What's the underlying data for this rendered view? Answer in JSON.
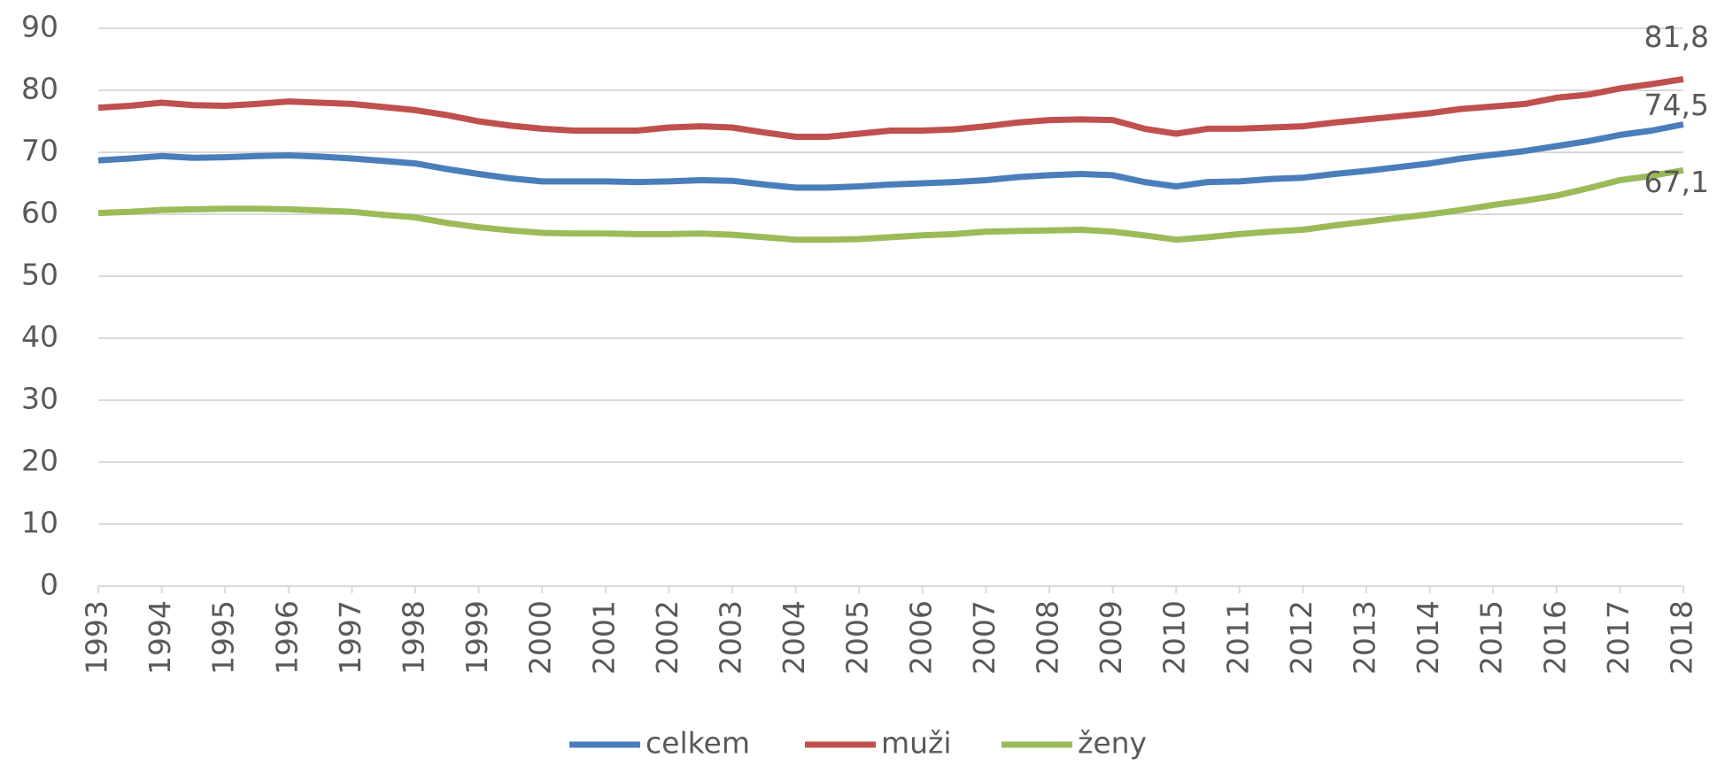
{
  "chart_data": {
    "type": "line",
    "x": [
      1993,
      1993.5,
      1994,
      1994.5,
      1995,
      1995.5,
      1996,
      1996.5,
      1997,
      1997.5,
      1998,
      1998.5,
      1999,
      1999.5,
      2000,
      2000.5,
      2001,
      2001.5,
      2002,
      2002.5,
      2003,
      2003.5,
      2004,
      2004.5,
      2005,
      2005.5,
      2006,
      2006.5,
      2007,
      2007.5,
      2008,
      2008.5,
      2009,
      2009.5,
      2010,
      2010.5,
      2011,
      2011.5,
      2012,
      2012.5,
      2013,
      2013.5,
      2014,
      2014.5,
      2015,
      2015.5,
      2016,
      2016.5,
      2017,
      2017.5,
      2018
    ],
    "series": [
      {
        "name": "celkem",
        "color": "#4a7ebb",
        "values": [
          68.7,
          69,
          69.4,
          69.1,
          69.2,
          69.4,
          69.5,
          69.3,
          69,
          68.6,
          68.2,
          67.3,
          66.5,
          65.8,
          65.3,
          65.3,
          65.3,
          65.2,
          65.3,
          65.5,
          65.4,
          64.8,
          64.3,
          64.3,
          64.5,
          64.8,
          65,
          65.2,
          65.5,
          66,
          66.3,
          66.5,
          66.3,
          65.2,
          64.5,
          65.2,
          65.3,
          65.7,
          65.9,
          66.5,
          67,
          67.6,
          68.2,
          69,
          69.6,
          70.2,
          71,
          71.8,
          72.8,
          73.5,
          74.5
        ],
        "value_labels": [
          null,
          null,
          null,
          null,
          null,
          null,
          null,
          null,
          null,
          null,
          null,
          null,
          null,
          null,
          null,
          null,
          null,
          null,
          null,
          null,
          null,
          null,
          null,
          null,
          null,
          null,
          null,
          null,
          null,
          null,
          null,
          null,
          null,
          null,
          null,
          null,
          null,
          null,
          null,
          null,
          null,
          null,
          null,
          null,
          null,
          null,
          null,
          null,
          null,
          null,
          "74,5"
        ]
      },
      {
        "name": "muži",
        "color": "#c0504d",
        "values": [
          77.2,
          77.5,
          78,
          77.6,
          77.5,
          77.8,
          78.2,
          78,
          77.8,
          77.3,
          76.8,
          76,
          75,
          74.3,
          73.8,
          73.5,
          73.5,
          73.5,
          74,
          74.2,
          74,
          73.2,
          72.5,
          72.5,
          73,
          73.5,
          73.5,
          73.7,
          74.2,
          74.8,
          75.2,
          75.3,
          75.2,
          73.8,
          73,
          73.8,
          73.8,
          74,
          74.2,
          74.8,
          75.3,
          75.8,
          76.3,
          77,
          77.4,
          77.8,
          78.8,
          79.3,
          80.3,
          81,
          81.8
        ],
        "value_labels": [
          null,
          null,
          null,
          null,
          null,
          null,
          null,
          null,
          null,
          null,
          null,
          null,
          null,
          null,
          null,
          null,
          null,
          null,
          null,
          null,
          null,
          null,
          null,
          null,
          null,
          null,
          null,
          null,
          null,
          null,
          null,
          null,
          null,
          null,
          null,
          null,
          null,
          null,
          null,
          null,
          null,
          null,
          null,
          null,
          null,
          null,
          null,
          null,
          null,
          null,
          "81,8"
        ]
      },
      {
        "name": "ženy",
        "color": "#9bbb59",
        "values": [
          60.2,
          60.4,
          60.7,
          60.8,
          60.9,
          60.9,
          60.8,
          60.6,
          60.4,
          59.9,
          59.5,
          58.6,
          57.9,
          57.4,
          57,
          56.9,
          56.9,
          56.8,
          56.8,
          56.9,
          56.7,
          56.3,
          55.9,
          55.9,
          56,
          56.3,
          56.6,
          56.8,
          57.2,
          57.3,
          57.4,
          57.5,
          57.2,
          56.6,
          55.9,
          56.3,
          56.8,
          57.2,
          57.5,
          58.2,
          58.8,
          59.4,
          60,
          60.7,
          61.5,
          62.2,
          63,
          64.2,
          65.5,
          66.2,
          67.1
        ],
        "value_labels": [
          null,
          null,
          null,
          null,
          null,
          null,
          null,
          null,
          null,
          null,
          null,
          null,
          null,
          null,
          null,
          null,
          null,
          null,
          null,
          null,
          null,
          null,
          null,
          null,
          null,
          null,
          null,
          null,
          null,
          null,
          null,
          null,
          null,
          null,
          null,
          null,
          null,
          null,
          null,
          null,
          null,
          null,
          null,
          null,
          null,
          null,
          null,
          null,
          null,
          null,
          "67,1"
        ]
      }
    ],
    "xlim": [
      1993,
      2018
    ],
    "xticks": [
      1993,
      1994,
      1995,
      1996,
      1997,
      1998,
      1999,
      2000,
      2001,
      2002,
      2003,
      2004,
      2005,
      2006,
      2007,
      2008,
      2009,
      2010,
      2011,
      2012,
      2013,
      2014,
      2015,
      2016,
      2017,
      2018
    ],
    "ylim": [
      0,
      90
    ],
    "yticks": [
      0,
      10,
      20,
      30,
      40,
      50,
      60,
      70,
      80,
      90
    ],
    "grid": true,
    "legend": "bottom"
  }
}
